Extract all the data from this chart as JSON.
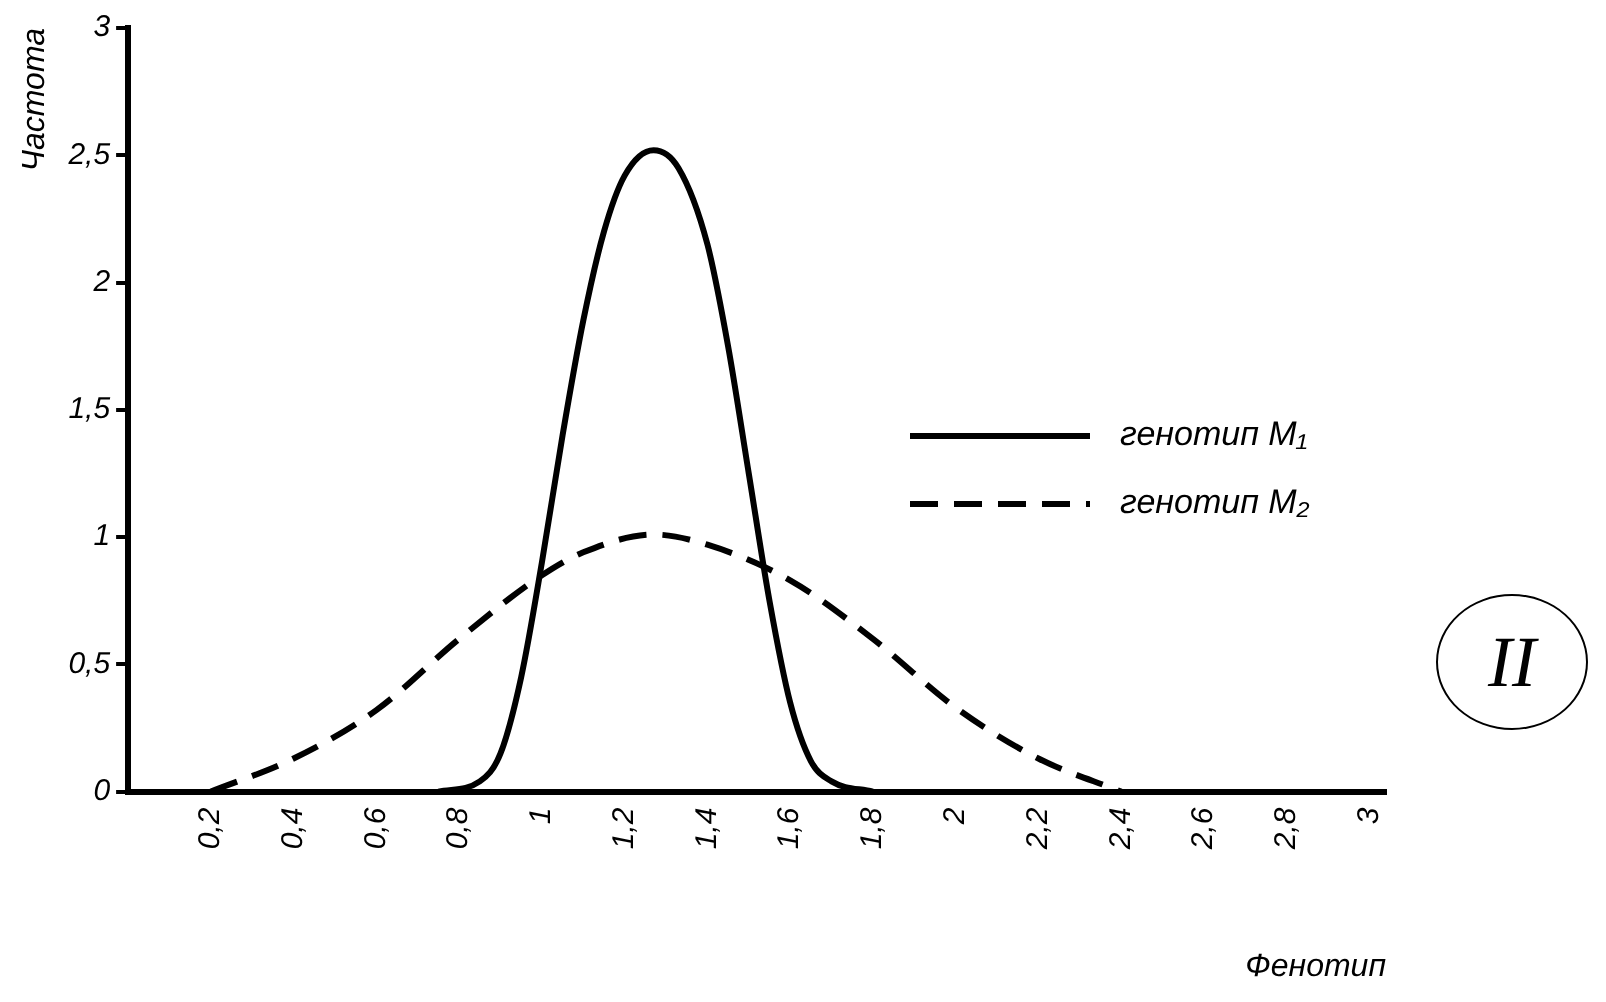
{
  "chart_data": {
    "type": "line",
    "xlabel": "Фенотип",
    "ylabel": "Частота",
    "annotations": [
      "II"
    ],
    "xlim": [
      0,
      3.04
    ],
    "ylim": [
      0,
      3
    ],
    "xticks": [
      {
        "value": 0.2,
        "label": "0,2"
      },
      {
        "value": 0.4,
        "label": "0,4"
      },
      {
        "value": 0.6,
        "label": "0,6"
      },
      {
        "value": 0.8,
        "label": "0,8"
      },
      1,
      {
        "value": 1.2,
        "label": "1,2"
      },
      {
        "value": 1.4,
        "label": "1,4"
      },
      {
        "value": 1.6,
        "label": "1,6"
      },
      {
        "value": 1.8,
        "label": "1,8"
      },
      2,
      {
        "value": 2.2,
        "label": "2,2"
      },
      {
        "value": 2.4,
        "label": "2,4"
      },
      {
        "value": 2.6,
        "label": "2,6"
      },
      {
        "value": 2.8,
        "label": "2,8"
      },
      3
    ],
    "yticks": [
      0,
      {
        "value": 0.5,
        "label": "0,5"
      },
      1,
      {
        "value": 1.5,
        "label": "1,5"
      },
      2,
      {
        "value": 2.5,
        "label": "2,5"
      },
      3
    ],
    "grid": false,
    "legend": "right",
    "marker": "none",
    "series": [
      {
        "name": "генотип M₁",
        "color": "#000000",
        "line_style": "solid",
        "x": [
          0.75,
          0.85,
          0.9,
          0.95,
          1.0,
          1.05,
          1.1,
          1.15,
          1.2,
          1.27,
          1.33,
          1.4,
          1.45,
          1.5,
          1.55,
          1.6,
          1.65,
          1.7,
          1.8
        ],
        "values": [
          0,
          0.04,
          0.15,
          0.45,
          0.9,
          1.4,
          1.85,
          2.2,
          2.42,
          2.52,
          2.45,
          2.15,
          1.75,
          1.25,
          0.75,
          0.35,
          0.12,
          0.04,
          0
        ]
      },
      {
        "name": "генотип M₂",
        "color": "#000000",
        "line_style": "dashed",
        "x": [
          0.2,
          0.4,
          0.6,
          0.8,
          1.0,
          1.1,
          1.27,
          1.4,
          1.6,
          1.8,
          2.0,
          2.2,
          2.4
        ],
        "values": [
          0,
          0.13,
          0.32,
          0.6,
          0.85,
          0.94,
          1.01,
          0.97,
          0.83,
          0.6,
          0.33,
          0.13,
          0
        ]
      }
    ]
  }
}
